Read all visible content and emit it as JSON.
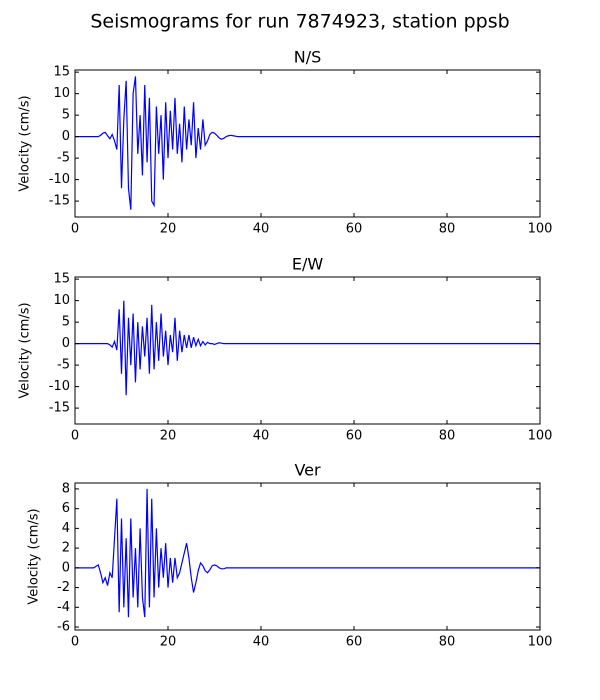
{
  "title": "Seismograms for run 7874923, station ppsb",
  "chart_data": [
    {
      "type": "line",
      "title": "N/S",
      "ylabel": "Velocity (cm/s)",
      "color": "#0000ff",
      "x": [
        0,
        2,
        4,
        5,
        5.5,
        6,
        6.5,
        7,
        7.5,
        8,
        8.5,
        9,
        9.5,
        10,
        10.5,
        11,
        11.5,
        12,
        12.5,
        13,
        13.5,
        14,
        14.5,
        15,
        15.5,
        16,
        16.5,
        17,
        17.5,
        18,
        18.5,
        19,
        19.5,
        20,
        20.5,
        21,
        21.5,
        22,
        22.5,
        23,
        23.5,
        24,
        24.5,
        25,
        25.5,
        26,
        26.5,
        27,
        27.5,
        28,
        28.5,
        29,
        29.5,
        30,
        30.5,
        31,
        31.5,
        32,
        32.5,
        33,
        33.5,
        34,
        34.5,
        35,
        35.5,
        36,
        40,
        50,
        60,
        70,
        80,
        90,
        100
      ],
      "values": [
        0,
        0,
        0,
        0,
        0.3,
        0.8,
        1,
        0.2,
        -0.5,
        0.5,
        -1,
        -3,
        12,
        -12,
        4,
        13,
        -12,
        -17,
        10,
        14,
        -4,
        5,
        -9,
        12,
        -6,
        9,
        -15,
        -16,
        7,
        -4,
        5,
        -10,
        8,
        -5,
        6,
        -3,
        9,
        -4,
        3,
        -6,
        7,
        -3,
        4,
        -2,
        8,
        -5,
        2,
        -3,
        4,
        -2,
        -1,
        0.5,
        1,
        0.8,
        0.3,
        -0.3,
        -0.6,
        -0.4,
        0,
        0.2,
        0.3,
        0.2,
        0.1,
        0,
        0,
        0,
        0,
        0,
        0,
        0,
        0,
        0,
        0
      ],
      "xlim": [
        0,
        100
      ],
      "xticks": [
        0,
        20,
        40,
        60,
        80,
        100
      ],
      "ylim": [
        -18.7,
        15.5
      ],
      "yticks": [
        -15,
        -10,
        -5,
        0,
        5,
        10,
        15
      ]
    },
    {
      "type": "line",
      "title": "E/W",
      "ylabel": "Velocity (cm/s)",
      "color": "#0000ff",
      "x": [
        0,
        2,
        4,
        5,
        5.5,
        6,
        6.5,
        7,
        7.5,
        8,
        8.5,
        9,
        9.5,
        10,
        10.5,
        11,
        11.5,
        12,
        12.5,
        13,
        13.5,
        14,
        14.5,
        15,
        15.5,
        16,
        16.5,
        17,
        17.5,
        18,
        18.5,
        19,
        19.5,
        20,
        20.5,
        21,
        21.5,
        22,
        22.5,
        23,
        23.5,
        24,
        24.5,
        25,
        25.5,
        26,
        26.5,
        27,
        27.5,
        28,
        28.5,
        29,
        29.5,
        30,
        30.5,
        31,
        31.5,
        32,
        32.5,
        33,
        33.5,
        34,
        34.5,
        35,
        35.5,
        36,
        40,
        50,
        60,
        70,
        80,
        90,
        100
      ],
      "values": [
        0,
        0,
        0,
        0,
        0,
        0,
        0,
        0,
        -0.3,
        -0.8,
        0.5,
        -1.5,
        8,
        -7,
        10,
        -12,
        6,
        -5,
        7,
        -9,
        5,
        -6,
        4,
        -3,
        6,
        -7,
        9,
        -6,
        5,
        -4,
        7,
        -3,
        3,
        -5,
        2,
        -2,
        6,
        -4,
        3,
        -2,
        2,
        -1,
        2,
        -1,
        1.5,
        -0.5,
        1,
        -0.5,
        0.5,
        -0.3,
        0.3,
        0,
        0,
        -0.2,
        0,
        0.2,
        0.1,
        0,
        0,
        0,
        0,
        0,
        0,
        0,
        0,
        0,
        0,
        0,
        0,
        0,
        0,
        0,
        0
      ],
      "xlim": [
        0,
        100
      ],
      "xticks": [
        0,
        20,
        40,
        60,
        80,
        100
      ],
      "ylim": [
        -18.7,
        15.5
      ],
      "yticks": [
        -15,
        -10,
        -5,
        0,
        5,
        10,
        15
      ]
    },
    {
      "type": "line",
      "title": "Ver",
      "ylabel": "Velocity (cm/s)",
      "color": "#0000ff",
      "x": [
        0,
        2,
        4,
        5,
        5.5,
        6,
        6.5,
        7,
        7.5,
        8,
        8.5,
        9,
        9.5,
        10,
        10.5,
        11,
        11.5,
        12,
        12.5,
        13,
        13.5,
        14,
        14.5,
        15,
        15.5,
        16,
        16.5,
        17,
        17.5,
        18,
        18.5,
        19,
        19.5,
        20,
        20.5,
        21,
        21.5,
        22,
        22.5,
        23,
        23.5,
        24,
        24.5,
        25,
        25.5,
        26,
        26.5,
        27,
        27.5,
        28,
        28.5,
        29,
        29.5,
        30,
        30.5,
        31,
        31.5,
        32,
        32.5,
        33,
        33.5,
        34,
        34.5,
        35,
        35.5,
        36,
        40,
        50,
        60,
        70,
        80,
        90,
        100
      ],
      "values": [
        0,
        0,
        0,
        0.3,
        -0.5,
        -1.5,
        -1,
        -1.8,
        -0.5,
        -1,
        3,
        7,
        -4.5,
        5,
        -4,
        3,
        -5,
        5,
        -3,
        2,
        -4,
        4,
        -3,
        -5,
        8,
        -4,
        7,
        -3,
        4,
        -2,
        2,
        -1,
        2.5,
        -2,
        1,
        -1.5,
        1,
        -1,
        -0.5,
        0.5,
        1.5,
        2.5,
        1,
        -1,
        -2.5,
        -1.5,
        -0.3,
        0.5,
        0.2,
        -0.3,
        -0.5,
        -0.2,
        0.2,
        0.3,
        0.2,
        0,
        -0.1,
        -0.1,
        0,
        0,
        0,
        0,
        0,
        0,
        0,
        0,
        0,
        0,
        0,
        0,
        0,
        0,
        0
      ],
      "xlim": [
        0,
        100
      ],
      "xticks": [
        0,
        20,
        40,
        60,
        80,
        100
      ],
      "ylim": [
        -6.3,
        8.6
      ],
      "yticks": [
        -6,
        -4,
        -2,
        0,
        2,
        4,
        6,
        8
      ]
    }
  ]
}
